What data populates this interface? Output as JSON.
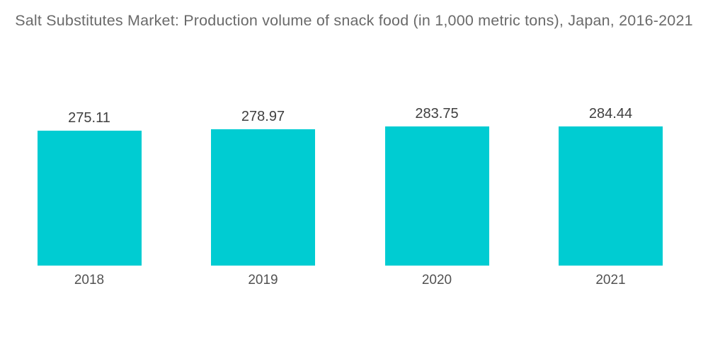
{
  "title": "Salt Substitutes Market: Production volume of snack food (in 1,000 metric tons), Japan, 2016-2021",
  "colors": {
    "background": "#FFFFFF",
    "bar": "#00CCD2",
    "title_text": "#6A6A6A",
    "value_text": "#3F3F3F",
    "year_text": "#525252"
  },
  "chart_data": {
    "type": "bar",
    "title": "Salt Substitutes Market: Production volume of snack food (in 1,000 metric tons), Japan, 2016-2021",
    "categories": [
      "2018",
      "2019",
      "2020",
      "2021"
    ],
    "values": [
      275.11,
      278.97,
      283.75,
      284.44
    ],
    "value_labels": [
      "275.11",
      "278.97",
      "283.75",
      "284.44"
    ],
    "series_name": "Production volume of snack food (1,000 metric tons)",
    "xlabel": "",
    "ylabel": "",
    "ylim": [
      0,
      284.44
    ],
    "grid": false,
    "legend_visible": false,
    "axes_visible": false,
    "data_labels_position": "above-bar"
  }
}
